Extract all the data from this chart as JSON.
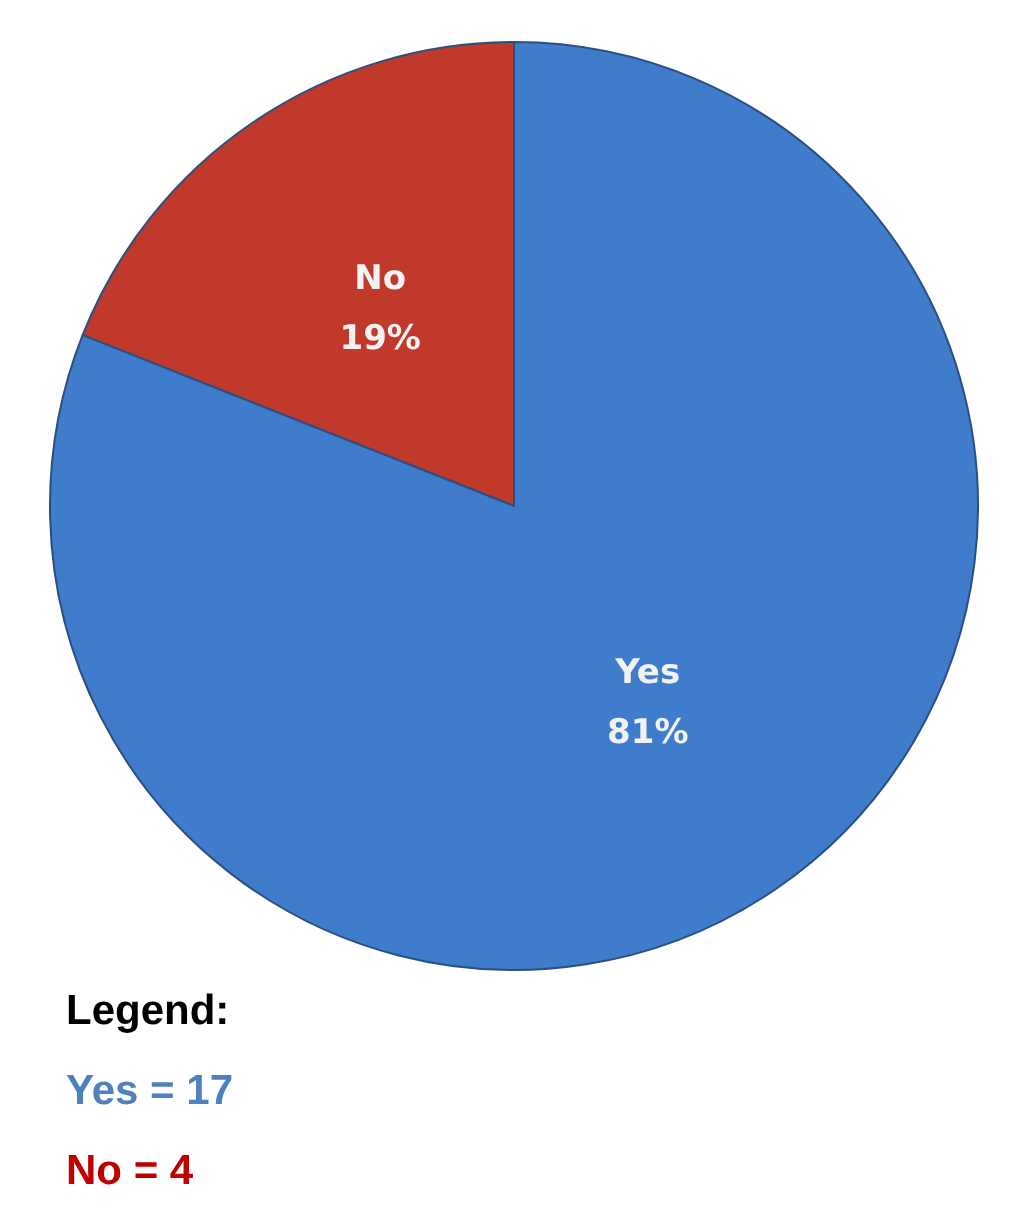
{
  "chart_data": {
    "type": "pie",
    "categories": [
      "No",
      "Yes"
    ],
    "values": [
      19,
      81
    ],
    "colors": [
      "#c0392b",
      "#3f7ccb"
    ],
    "value_labels": [
      "19%",
      "81%"
    ],
    "legend_title": "Legend:",
    "annotations": [
      "Yes = 17",
      "No = 4"
    ]
  }
}
